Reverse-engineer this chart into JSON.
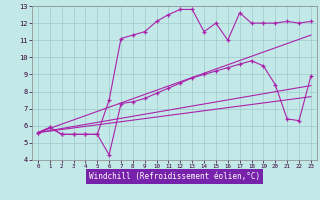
{
  "xlabel": "Windchill (Refroidissement éolien,°C)",
  "xlim": [
    -0.5,
    23.5
  ],
  "ylim": [
    4,
    13
  ],
  "bg_color": "#c2e8e8",
  "grid_color": "#a0cccc",
  "line_color": "#aa22aa",
  "xlabel_bg": "#7722aa",
  "xlabel_fg": "#ffffff",
  "line1_x": [
    0,
    1,
    2,
    3,
    4,
    5,
    6,
    7,
    8,
    9,
    10,
    11,
    12,
    13,
    14,
    15,
    16,
    17,
    18,
    19,
    20,
    21,
    22,
    23
  ],
  "line1_y": [
    5.6,
    5.9,
    5.5,
    5.5,
    5.5,
    5.5,
    4.3,
    7.3,
    7.4,
    7.6,
    7.9,
    8.2,
    8.5,
    8.8,
    9.0,
    9.2,
    9.4,
    9.6,
    9.8,
    9.5,
    8.4,
    6.4,
    6.3,
    8.9
  ],
  "line2_x": [
    0,
    1,
    2,
    3,
    4,
    5,
    6,
    7,
    8,
    9,
    10,
    11,
    12,
    13,
    14,
    15,
    16,
    17,
    18,
    19,
    20,
    21,
    22,
    23
  ],
  "line2_y": [
    5.6,
    5.9,
    5.5,
    5.5,
    5.5,
    5.5,
    7.5,
    11.1,
    11.3,
    11.5,
    12.1,
    12.5,
    12.8,
    12.8,
    11.5,
    12.0,
    11.0,
    12.6,
    12.0,
    12.0,
    12.0,
    12.1,
    12.0,
    12.1
  ],
  "line3_x": [
    0,
    23
  ],
  "line3_y": [
    5.6,
    11.3
  ],
  "line4_x": [
    0,
    23
  ],
  "line4_y": [
    5.6,
    8.35
  ],
  "line5_x": [
    0,
    23
  ],
  "line5_y": [
    5.6,
    7.7
  ]
}
